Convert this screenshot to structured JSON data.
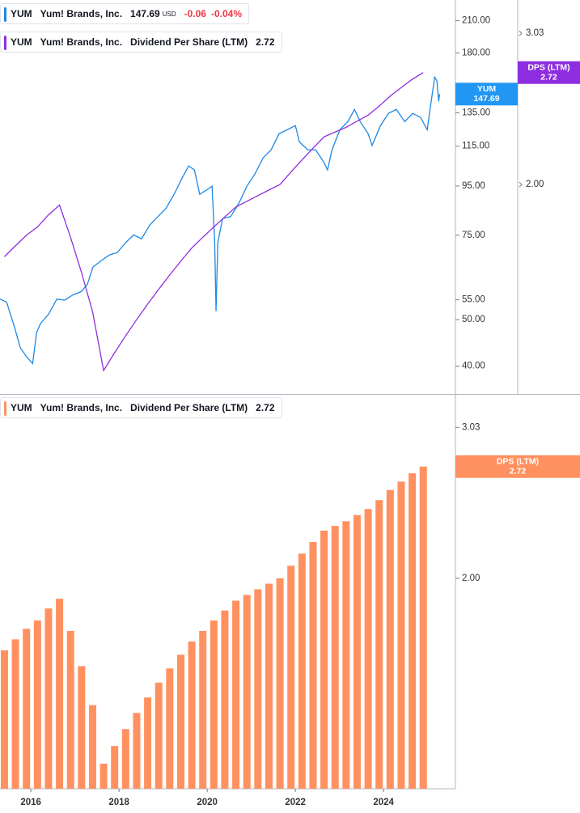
{
  "chart_data": [
    {
      "type": "line",
      "symbol": "YUM",
      "company": "Yum! Brands, Inc.",
      "currency": "USD",
      "change": "-0.06",
      "change_pct": "-0.04%",
      "log_scale": true,
      "grid": false,
      "xlim": [
        2015.3,
        2025.63
      ],
      "ylim": [
        35,
        232
      ],
      "yticks": [
        {
          "value": 210,
          "label": "210.00"
        },
        {
          "value": 180,
          "label": "180.00"
        },
        {
          "value": 135,
          "label": "135.00"
        },
        {
          "value": 115,
          "label": "115.00"
        },
        {
          "value": 95,
          "label": "95.00"
        },
        {
          "value": 75,
          "label": "75.00"
        },
        {
          "value": 55,
          "label": "55.00"
        },
        {
          "value": 50,
          "label": "50.00"
        },
        {
          "value": 40,
          "label": "40.00"
        }
      ],
      "y2lim": [
        1.125,
        3.32
      ],
      "y2ticks": [
        3.03,
        {
          "value": 2,
          "label": "2.00"
        }
      ],
      "series": [
        {
          "color": "#1e88e5",
          "x": [
            2015.3,
            2015.45,
            2015.63,
            2015.76,
            2015.89,
            2016.04,
            2016.13,
            2016.22,
            2016.4,
            2016.59,
            2016.77,
            2016.95,
            2017.14,
            2017.28,
            2017.41,
            2017.6,
            2017.78,
            2017.96,
            2018.15,
            2018.33,
            2018.51,
            2018.7,
            2018.88,
            2019.06,
            2019.25,
            2019.43,
            2019.58,
            2019.71,
            2019.83,
            2019.98,
            2020.11,
            2020.17,
            2020.2,
            2020.24,
            2020.35,
            2020.53,
            2020.72,
            2020.9,
            2021.08,
            2021.27,
            2021.45,
            2021.63,
            2021.82,
            2022.0,
            2022.09,
            2022.28,
            2022.46,
            2022.64,
            2022.73,
            2022.83,
            2023.01,
            2023.19,
            2023.34,
            2023.47,
            2023.65,
            2023.74,
            2023.93,
            2024.11,
            2024.29,
            2024.48,
            2024.66,
            2024.84,
            2024.99,
            2025.08,
            2025.16,
            2025.21,
            2025.25,
            2025.27
          ],
          "values": [
            55.2,
            54.4,
            48.2,
            43.7,
            42.0,
            40.5,
            47.0,
            49.1,
            51.3,
            55.2,
            54.9,
            56.3,
            57.2,
            59.2,
            64.4,
            66.4,
            68.2,
            69.0,
            72.4,
            75.1,
            73.7,
            78.8,
            82.0,
            85.2,
            91.3,
            98.7,
            104.6,
            102.6,
            91.3,
            93.1,
            94.9,
            72.4,
            52.1,
            72.4,
            81.3,
            82.0,
            87.5,
            94.9,
            100.6,
            108.8,
            113.0,
            122.1,
            124.5,
            126.9,
            117.4,
            113.0,
            113.0,
            106.7,
            102.6,
            113.0,
            124.5,
            129.4,
            137.2,
            129.4,
            122.1,
            115.4,
            126.9,
            134.6,
            137.2,
            129.4,
            134.6,
            132.0,
            124.5,
            142.6,
            160.2,
            157.3,
            142.6,
            147.69
          ]
        },
        {
          "name": "Dividend Per Share (LTM)",
          "short_name": "DPS (LTM)",
          "color": "#8e2ee0",
          "axis": "y2",
          "x": [
            2015.4,
            2015.65,
            2015.9,
            2016.15,
            2016.4,
            2016.65,
            2016.9,
            2017.15,
            2017.4,
            2017.65,
            2017.9,
            2018.15,
            2018.4,
            2018.65,
            2018.9,
            2019.15,
            2019.4,
            2019.65,
            2019.9,
            2020.15,
            2020.4,
            2020.65,
            2020.9,
            2021.15,
            2021.4,
            2021.65,
            2021.9,
            2022.15,
            2022.4,
            2022.65,
            2022.9,
            2023.15,
            2023.4,
            2023.65,
            2023.9,
            2024.15,
            2024.4,
            2024.65,
            2024.9
          ],
          "values": [
            1.64,
            1.69,
            1.74,
            1.78,
            1.84,
            1.89,
            1.73,
            1.57,
            1.41,
            1.2,
            1.26,
            1.32,
            1.38,
            1.44,
            1.5,
            1.56,
            1.62,
            1.68,
            1.73,
            1.78,
            1.83,
            1.88,
            1.91,
            1.94,
            1.97,
            2,
            2.07,
            2.14,
            2.21,
            2.28,
            2.31,
            2.34,
            2.38,
            2.42,
            2.48,
            2.55,
            2.61,
            2.67,
            2.72
          ]
        }
      ]
    },
    {
      "type": "bar",
      "symbol": "YUM",
      "company": "Yum! Brands, Inc.",
      "log_scale": true,
      "grid": false,
      "xlim": [
        2015.3,
        2025.63
      ],
      "xticks": [
        2016,
        2018,
        2020,
        2022,
        2024
      ],
      "ylim": [
        1.12,
        3.3
      ],
      "yticks": [
        3.03,
        2.72,
        {
          "value": 2,
          "label": "2.00"
        }
      ],
      "series": [
        {
          "name": "Dividend Per Share (LTM)",
          "short_name": "DPS (LTM)",
          "color": "#ff9160",
          "x": [
            2015.4,
            2015.65,
            2015.9,
            2016.15,
            2016.4,
            2016.65,
            2016.9,
            2017.15,
            2017.4,
            2017.65,
            2017.9,
            2018.15,
            2018.4,
            2018.65,
            2018.9,
            2019.15,
            2019.4,
            2019.65,
            2019.9,
            2020.15,
            2020.4,
            2020.65,
            2020.9,
            2021.15,
            2021.4,
            2021.65,
            2021.9,
            2022.15,
            2022.4,
            2022.65,
            2022.9,
            2023.15,
            2023.4,
            2023.65,
            2023.9,
            2024.15,
            2024.4,
            2024.65,
            2024.9
          ],
          "values": [
            1.64,
            1.69,
            1.74,
            1.78,
            1.84,
            1.89,
            1.73,
            1.57,
            1.41,
            1.2,
            1.26,
            1.32,
            1.38,
            1.44,
            1.5,
            1.56,
            1.62,
            1.68,
            1.73,
            1.78,
            1.83,
            1.88,
            1.91,
            1.94,
            1.97,
            2,
            2.07,
            2.14,
            2.21,
            2.28,
            2.31,
            2.34,
            2.38,
            2.42,
            2.48,
            2.55,
            2.61,
            2.67,
            2.72
          ]
        }
      ]
    }
  ]
}
